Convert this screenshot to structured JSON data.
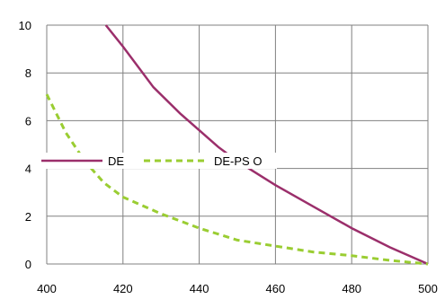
{
  "chart_data": {
    "type": "line",
    "title": "",
    "xlabel": "",
    "ylabel": "",
    "xlim": [
      400,
      500
    ],
    "ylim": [
      0,
      10
    ],
    "x_ticks": [
      400,
      420,
      440,
      460,
      480,
      500
    ],
    "y_ticks": [
      0,
      2,
      4,
      6,
      8,
      10
    ],
    "grid": true,
    "legend_position": "inside-middle",
    "series": [
      {
        "name": "DE",
        "color": "#9b2f6b",
        "style": "solid",
        "points": [
          [
            415.5,
            10
          ],
          [
            420,
            9.1
          ],
          [
            428,
            7.4
          ],
          [
            435,
            6.3
          ],
          [
            445,
            4.9
          ],
          [
            450,
            4.3
          ],
          [
            460,
            3.3
          ],
          [
            470,
            2.4
          ],
          [
            480,
            1.5
          ],
          [
            490,
            0.7
          ],
          [
            500,
            0
          ]
        ]
      },
      {
        "name": "DE-PS O",
        "color": "#9acd32",
        "style": "dashed",
        "points": [
          [
            400,
            7.1
          ],
          [
            405,
            5.5
          ],
          [
            410,
            4.3
          ],
          [
            415,
            3.4
          ],
          [
            420,
            2.8
          ],
          [
            430,
            2.1
          ],
          [
            440,
            1.5
          ],
          [
            450,
            1.0
          ],
          [
            460,
            0.75
          ],
          [
            470,
            0.5
          ],
          [
            480,
            0.35
          ],
          [
            490,
            0.15
          ],
          [
            500,
            0
          ]
        ]
      }
    ]
  }
}
